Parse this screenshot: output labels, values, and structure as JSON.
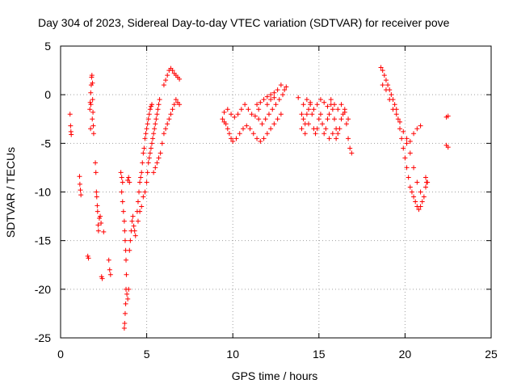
{
  "chart_data": {
    "type": "scatter",
    "title": "Day 304 of 2023, Sidereal Day-to-day VTEC variation (SDTVAR) for receiver pove",
    "xlabel": "GPS time / hours",
    "ylabel": "SDTVAR / TECUs",
    "xlim": [
      0,
      25
    ],
    "ylim": [
      -25,
      5
    ],
    "xticks": [
      0,
      5,
      10,
      15,
      20,
      25
    ],
    "yticks": [
      -25,
      -20,
      -15,
      -10,
      -5,
      0,
      5
    ],
    "xtick_labels": [
      "0",
      "5",
      "10",
      "15",
      "20",
      "25"
    ],
    "ytick_labels": [
      "-25",
      "-20",
      "-15",
      "-10",
      "-5",
      "0",
      "5"
    ],
    "grid": true,
    "marker": "+",
    "color": "#ff0000",
    "series": [
      {
        "name": "SDTVAR",
        "points": [
          [
            0.55,
            -2.0
          ],
          [
            0.58,
            -3.2
          ],
          [
            0.6,
            -3.8
          ],
          [
            0.62,
            -4.1
          ],
          [
            1.1,
            -8.4
          ],
          [
            1.12,
            -9.2
          ],
          [
            1.15,
            -9.8
          ],
          [
            1.18,
            -10.3
          ],
          [
            1.58,
            -16.6
          ],
          [
            1.62,
            -16.8
          ],
          [
            1.7,
            -1.5
          ],
          [
            1.72,
            -0.8
          ],
          [
            1.75,
            0.2
          ],
          [
            1.78,
            1.0
          ],
          [
            1.8,
            1.8
          ],
          [
            1.82,
            2.0
          ],
          [
            1.85,
            1.2
          ],
          [
            1.86,
            -0.5
          ],
          [
            1.88,
            -1.8
          ],
          [
            1.9,
            -3.2
          ],
          [
            1.92,
            -4.0
          ],
          [
            1.84,
            -2.5
          ],
          [
            1.76,
            -1.0
          ],
          [
            1.74,
            -3.5
          ],
          [
            2.02,
            -7.0
          ],
          [
            2.05,
            -8.0
          ],
          [
            2.08,
            -10.0
          ],
          [
            2.1,
            -10.5
          ],
          [
            2.13,
            -11.4
          ],
          [
            2.15,
            -12.0
          ],
          [
            2.18,
            -13.4
          ],
          [
            2.2,
            -14.0
          ],
          [
            2.25,
            -12.7
          ],
          [
            2.3,
            -12.5
          ],
          [
            2.35,
            -13.2
          ],
          [
            2.38,
            -18.7
          ],
          [
            2.42,
            -18.9
          ],
          [
            2.5,
            -14.1
          ],
          [
            2.8,
            -17.0
          ],
          [
            2.85,
            -18.0
          ],
          [
            2.9,
            -18.5
          ],
          [
            3.5,
            -8.0
          ],
          [
            3.55,
            -8.5
          ],
          [
            3.6,
            -9.0
          ],
          [
            3.55,
            -10.0
          ],
          [
            3.6,
            -11.0
          ],
          [
            3.65,
            -12.0
          ],
          [
            3.7,
            -13.0
          ],
          [
            3.72,
            -14.0
          ],
          [
            3.75,
            -15.0
          ],
          [
            3.78,
            -16.0
          ],
          [
            3.8,
            -17.0
          ],
          [
            3.82,
            -18.5
          ],
          [
            3.8,
            -20.0
          ],
          [
            3.78,
            -21.5
          ],
          [
            3.75,
            -22.5
          ],
          [
            3.72,
            -23.5
          ],
          [
            3.7,
            -24.0
          ],
          [
            3.85,
            -20.5
          ],
          [
            3.9,
            -21.0
          ],
          [
            3.95,
            -20.0
          ],
          [
            4.0,
            -16.0
          ],
          [
            4.05,
            -15.0
          ],
          [
            4.1,
            -14.0
          ],
          [
            4.15,
            -13.0
          ],
          [
            4.2,
            -12.5
          ],
          [
            4.25,
            -13.5
          ],
          [
            4.3,
            -14.0
          ],
          [
            4.35,
            -14.5
          ],
          [
            3.95,
            -8.5
          ],
          [
            3.9,
            -8.8
          ],
          [
            4.0,
            -9.0
          ],
          [
            4.45,
            -12.0
          ],
          [
            4.5,
            -11.0
          ],
          [
            4.55,
            -10.0
          ],
          [
            4.6,
            -9.0
          ],
          [
            4.65,
            -8.5
          ],
          [
            4.7,
            -8.0
          ],
          [
            4.75,
            -7.0
          ],
          [
            4.8,
            -6.0
          ],
          [
            4.85,
            -5.5
          ],
          [
            4.9,
            -4.5
          ],
          [
            4.95,
            -4.0
          ],
          [
            5.0,
            -3.5
          ],
          [
            5.05,
            -3.0
          ],
          [
            5.1,
            -2.5
          ],
          [
            5.15,
            -2.0
          ],
          [
            5.2,
            -1.5
          ],
          [
            5.25,
            -1.2
          ],
          [
            5.3,
            -1.0
          ],
          [
            4.5,
            -13.0
          ],
          [
            4.6,
            -12.0
          ],
          [
            4.7,
            -11.5
          ],
          [
            4.8,
            -10.5
          ],
          [
            4.9,
            -10.0
          ],
          [
            5.0,
            -9.0
          ],
          [
            5.05,
            -8.0
          ],
          [
            5.1,
            -7.0
          ],
          [
            5.15,
            -6.5
          ],
          [
            5.2,
            -6.0
          ],
          [
            5.25,
            -5.5
          ],
          [
            5.3,
            -5.0
          ],
          [
            5.35,
            -4.5
          ],
          [
            5.4,
            -4.0
          ],
          [
            5.45,
            -3.5
          ],
          [
            5.5,
            -3.0
          ],
          [
            5.55,
            -2.5
          ],
          [
            5.6,
            -2.0
          ],
          [
            5.65,
            -1.5
          ],
          [
            5.7,
            -1.0
          ],
          [
            5.75,
            -0.5
          ],
          [
            5.4,
            -8.0
          ],
          [
            5.5,
            -7.5
          ],
          [
            5.6,
            -7.0
          ],
          [
            5.7,
            -6.5
          ],
          [
            5.8,
            -6.0
          ],
          [
            5.9,
            -5.0
          ],
          [
            6.0,
            -4.0
          ],
          [
            6.1,
            -3.5
          ],
          [
            6.2,
            -3.0
          ],
          [
            6.3,
            -2.5
          ],
          [
            6.4,
            -2.0
          ],
          [
            6.5,
            -1.5
          ],
          [
            6.6,
            -1.0
          ],
          [
            6.7,
            -0.5
          ],
          [
            6.8,
            -0.8
          ],
          [
            6.9,
            -1.0
          ],
          [
            6.0,
            1.0
          ],
          [
            6.1,
            1.5
          ],
          [
            6.2,
            2.0
          ],
          [
            6.3,
            2.5
          ],
          [
            6.4,
            2.7
          ],
          [
            6.5,
            2.5
          ],
          [
            6.6,
            2.2
          ],
          [
            6.7,
            2.0
          ],
          [
            6.8,
            1.8
          ],
          [
            6.9,
            1.6
          ],
          [
            9.4,
            -2.5
          ],
          [
            9.5,
            -2.8
          ],
          [
            9.6,
            -3.0
          ],
          [
            9.7,
            -3.5
          ],
          [
            9.8,
            -4.0
          ],
          [
            9.9,
            -4.5
          ],
          [
            10.0,
            -4.8
          ],
          [
            10.2,
            -4.5
          ],
          [
            10.4,
            -4.0
          ],
          [
            10.6,
            -3.5
          ],
          [
            10.8,
            -3.2
          ],
          [
            11.0,
            -3.5
          ],
          [
            11.2,
            -4.0
          ],
          [
            11.4,
            -4.5
          ],
          [
            11.6,
            -4.8
          ],
          [
            11.8,
            -4.5
          ],
          [
            12.0,
            -4.0
          ],
          [
            12.2,
            -3.5
          ],
          [
            12.4,
            -3.0
          ],
          [
            12.6,
            -2.5
          ],
          [
            12.8,
            -2.0
          ],
          [
            9.5,
            -1.8
          ],
          [
            9.7,
            -1.5
          ],
          [
            9.9,
            -2.0
          ],
          [
            10.1,
            -2.3
          ],
          [
            10.3,
            -2.0
          ],
          [
            10.5,
            -1.5
          ],
          [
            10.7,
            -1.0
          ],
          [
            10.9,
            -1.5
          ],
          [
            11.1,
            -2.0
          ],
          [
            11.3,
            -2.2
          ],
          [
            11.5,
            -2.5
          ],
          [
            11.7,
            -3.0
          ],
          [
            11.9,
            -2.5
          ],
          [
            12.1,
            -2.0
          ],
          [
            12.3,
            -1.5
          ],
          [
            12.5,
            -1.0
          ],
          [
            12.7,
            -0.5
          ],
          [
            12.9,
            0.0
          ],
          [
            13.0,
            0.5
          ],
          [
            13.1,
            0.8
          ],
          [
            12.8,
            1.0
          ],
          [
            12.6,
            0.5
          ],
          [
            12.4,
            0.2
          ],
          [
            12.2,
            -0.5
          ],
          [
            12.0,
            -1.0
          ],
          [
            11.4,
            -1.0
          ],
          [
            11.5,
            -1.5
          ],
          [
            11.6,
            -0.8
          ],
          [
            11.8,
            -0.5
          ],
          [
            12.0,
            -0.2
          ],
          [
            12.2,
            0.0
          ],
          [
            12.4,
            -0.3
          ],
          [
            14.0,
            -2.0
          ],
          [
            14.1,
            -2.5
          ],
          [
            14.2,
            -3.0
          ],
          [
            14.3,
            -2.0
          ],
          [
            14.4,
            -1.5
          ],
          [
            14.5,
            -1.0
          ],
          [
            14.6,
            -2.0
          ],
          [
            14.7,
            -3.5
          ],
          [
            14.8,
            -4.0
          ],
          [
            14.9,
            -3.5
          ],
          [
            15.0,
            -2.5
          ],
          [
            15.1,
            -2.0
          ],
          [
            15.2,
            -3.0
          ],
          [
            15.3,
            -4.0
          ],
          [
            15.4,
            -3.5
          ],
          [
            15.5,
            -2.5
          ],
          [
            15.6,
            -2.0
          ],
          [
            15.7,
            -1.0
          ],
          [
            15.8,
            -1.5
          ],
          [
            15.9,
            -2.5
          ],
          [
            16.0,
            -3.5
          ],
          [
            16.1,
            -4.0
          ],
          [
            16.2,
            -3.5
          ],
          [
            16.3,
            -2.5
          ],
          [
            16.4,
            -2.0
          ],
          [
            16.5,
            -1.5
          ],
          [
            16.6,
            -3.0
          ],
          [
            16.7,
            -4.5
          ],
          [
            16.8,
            -5.5
          ],
          [
            16.9,
            -6.0
          ],
          [
            14.1,
            -1.0
          ],
          [
            14.3,
            -0.5
          ],
          [
            14.5,
            -0.8
          ],
          [
            14.7,
            -1.5
          ],
          [
            14.9,
            -1.0
          ],
          [
            15.1,
            -0.5
          ],
          [
            15.3,
            -0.8
          ],
          [
            15.5,
            -1.2
          ],
          [
            15.7,
            -0.5
          ],
          [
            15.9,
            -1.0
          ],
          [
            16.1,
            -1.5
          ],
          [
            16.3,
            -1.0
          ],
          [
            16.5,
            -1.8
          ],
          [
            16.7,
            -2.5
          ],
          [
            13.8,
            -0.3
          ],
          [
            14.0,
            -3.5
          ],
          [
            14.2,
            -4.0
          ],
          [
            14.4,
            -3.0
          ],
          [
            15.6,
            -4.5
          ],
          [
            15.8,
            -4.0
          ],
          [
            16.0,
            -4.5
          ],
          [
            18.6,
            2.8
          ],
          [
            18.7,
            2.5
          ],
          [
            18.8,
            2.0
          ],
          [
            18.9,
            1.5
          ],
          [
            19.0,
            1.0
          ],
          [
            19.1,
            0.5
          ],
          [
            19.2,
            0.0
          ],
          [
            19.3,
            -0.5
          ],
          [
            19.4,
            -1.0
          ],
          [
            19.5,
            -1.5
          ],
          [
            19.6,
            -2.5
          ],
          [
            19.7,
            -3.5
          ],
          [
            19.8,
            -4.5
          ],
          [
            19.9,
            -5.5
          ],
          [
            20.0,
            -6.5
          ],
          [
            20.1,
            -7.5
          ],
          [
            20.2,
            -8.5
          ],
          [
            20.3,
            -9.5
          ],
          [
            20.4,
            -10.0
          ],
          [
            20.5,
            -10.5
          ],
          [
            20.6,
            -11.0
          ],
          [
            20.7,
            -11.5
          ],
          [
            20.8,
            -11.8
          ],
          [
            20.9,
            -11.5
          ],
          [
            21.0,
            -11.0
          ],
          [
            18.7,
            1.0
          ],
          [
            18.9,
            0.5
          ],
          [
            19.1,
            -0.5
          ],
          [
            19.3,
            -1.5
          ],
          [
            19.5,
            -2.0
          ],
          [
            19.7,
            -2.8
          ],
          [
            19.9,
            -3.8
          ],
          [
            20.1,
            -5.0
          ],
          [
            20.3,
            -6.0
          ],
          [
            20.5,
            -7.5
          ],
          [
            20.7,
            -9.0
          ],
          [
            20.9,
            -10.0
          ],
          [
            21.1,
            -10.5
          ],
          [
            21.2,
            -9.5
          ],
          [
            21.3,
            -9.0
          ],
          [
            20.1,
            -4.5
          ],
          [
            20.3,
            -4.8
          ],
          [
            20.5,
            -4.0
          ],
          [
            20.7,
            -3.5
          ],
          [
            20.9,
            -3.2
          ],
          [
            21.2,
            -8.5
          ],
          [
            21.25,
            -9.0
          ],
          [
            22.4,
            -2.3
          ],
          [
            22.5,
            -2.2
          ],
          [
            22.4,
            -5.2
          ],
          [
            22.5,
            -5.4
          ]
        ]
      }
    ]
  }
}
